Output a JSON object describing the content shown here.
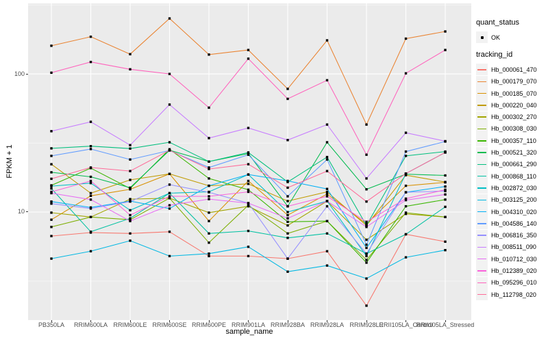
{
  "chart_data": {
    "type": "line",
    "title": "",
    "xlabel": "sample_name",
    "ylabel": "FPKM + 1",
    "yscale": "log10",
    "ylim": [
      1.65,
      324
    ],
    "yticks": [
      10,
      100
    ],
    "yminor": [
      3.162,
      31.62,
      316.2
    ],
    "grid": true,
    "legend_position": "right",
    "point_shape": "filled-square",
    "point_color": "#000000",
    "categories": [
      "PB350LA",
      "RRIM600LA",
      "RRIM600LE",
      "RRIM600SE",
      "RRIM600PE",
      "RRIM901LA",
      "RRIM928BA",
      "RRIM928LA",
      "RRIM928LE",
      "RRII105LA_Control",
      "RRII105LA_Stressed"
    ],
    "series": [
      {
        "name": "Hb_000061_470",
        "color": "#F8766D",
        "values": [
          6.7,
          7.1,
          7.0,
          7.2,
          4.8,
          4.8,
          4.6,
          5.2,
          2.1,
          6.9,
          6.1
        ]
      },
      {
        "name": "Hb_000179_070",
        "color": "#EA8331",
        "values": [
          160,
          186,
          139,
          252,
          138,
          149,
          78,
          175,
          43,
          180,
          203
        ]
      },
      {
        "name": "Hb_000185_070",
        "color": "#D89000",
        "values": [
          8.8,
          13.1,
          14.6,
          18.9,
          8.6,
          16.8,
          9.5,
          13.5,
          8.2,
          15.5,
          16.4
        ]
      },
      {
        "name": "Hb_000220_040",
        "color": "#C09B00",
        "values": [
          22.2,
          13.7,
          17.1,
          18.9,
          15.5,
          16.0,
          12.0,
          14.0,
          8.0,
          18.5,
          16.5
        ]
      },
      {
        "name": "Hb_000302_270",
        "color": "#A3A500",
        "values": [
          9.9,
          9.2,
          12.4,
          12.6,
          9.9,
          11.0,
          8.0,
          12.0,
          6.3,
          9.7,
          9.2
        ]
      },
      {
        "name": "Hb_000308_030",
        "color": "#7CAE00",
        "values": [
          7.8,
          9.2,
          8.8,
          12.6,
          6.0,
          11.2,
          7.0,
          8.6,
          4.5,
          9.9,
          9.2
        ]
      },
      {
        "name": "Hb_000357_110",
        "color": "#39B600",
        "values": [
          15.6,
          20.8,
          14.8,
          28.5,
          17.5,
          14.5,
          8.5,
          8.6,
          4.3,
          11.0,
          12.3
        ]
      },
      {
        "name": "Hb_000521_320",
        "color": "#00BB4E",
        "values": [
          19.4,
          18.0,
          15.0,
          28.0,
          23.2,
          26.5,
          11.0,
          32.0,
          14.6,
          18.8,
          18.4
        ]
      },
      {
        "name": "Hb_000661_290",
        "color": "#00BF7D",
        "values": [
          28.9,
          30.0,
          28.8,
          32.0,
          23.2,
          27.0,
          16.5,
          25.0,
          8.0,
          25.5,
          27.4
        ]
      },
      {
        "name": "Hb_000868_110",
        "color": "#00C1A2",
        "values": [
          14.8,
          7.2,
          9.0,
          13.7,
          7.0,
          7.3,
          6.5,
          7.0,
          5.0,
          6.9,
          10.9
        ]
      },
      {
        "name": "Hb_002872_030",
        "color": "#00BFC4",
        "values": [
          15.4,
          16.2,
          10.3,
          13.7,
          14.0,
          18.7,
          10.0,
          12.0,
          4.8,
          19.0,
          27.0
        ]
      },
      {
        "name": "Hb_003125_200",
        "color": "#00B8E3",
        "values": [
          4.6,
          5.2,
          6.2,
          4.8,
          5.0,
          5.6,
          3.7,
          4.1,
          3.3,
          4.7,
          5.3
        ]
      },
      {
        "name": "Hb_004310_020",
        "color": "#00B0F6",
        "values": [
          11.9,
          10.8,
          12.0,
          10.6,
          15.5,
          18.7,
          16.8,
          14.7,
          5.5,
          13.9,
          15.3
        ]
      },
      {
        "name": "Hb_004586_140",
        "color": "#619CFF",
        "values": [
          25.5,
          28.6,
          24.0,
          27.9,
          21.0,
          26.0,
          13.0,
          24.0,
          5.8,
          27.4,
          32.4
        ]
      },
      {
        "name": "Hb_006816_350",
        "color": "#9590FF",
        "values": [
          11.5,
          10.6,
          11.9,
          15.8,
          13.9,
          11.6,
          4.6,
          11.0,
          5.0,
          13.9,
          14.2
        ]
      },
      {
        "name": "Hb_008511_090",
        "color": "#C77CFF",
        "values": [
          38.5,
          45.0,
          30.5,
          60.0,
          34.3,
          40.6,
          33.2,
          43.0,
          17.5,
          37.5,
          32.6
        ]
      },
      {
        "name": "Hb_010712_030",
        "color": "#E76BF3",
        "values": [
          13.7,
          12.3,
          8.6,
          11.2,
          12.4,
          11.6,
          9.0,
          12.0,
          7.8,
          12.2,
          13.4
        ]
      },
      {
        "name": "Hb_012389_020",
        "color": "#FA62DB",
        "values": [
          14.0,
          16.8,
          9.5,
          13.0,
          13.0,
          14.0,
          11.0,
          13.0,
          8.5,
          12.5,
          14.5
        ]
      },
      {
        "name": "Hb_095296_010",
        "color": "#FF62BC",
        "values": [
          102,
          122,
          108,
          100,
          57,
          129,
          66,
          90,
          26,
          101,
          149
        ]
      },
      {
        "name": "Hb_112798_020",
        "color": "#FF6A98",
        "values": [
          17.4,
          21.0,
          19.8,
          28.0,
          20.5,
          22.2,
          15.0,
          19.8,
          11.9,
          19.0,
          27.0
        ]
      }
    ]
  },
  "legend": {
    "quant_status": {
      "title": "quant_status",
      "items": [
        {
          "label": "OK"
        }
      ]
    },
    "tracking_id": {
      "title": "tracking_id"
    }
  },
  "theme": {
    "panel_bg": "#EBEBEB",
    "grid_color": "#FFFFFF",
    "legend_key_bg": "#F2F2F2",
    "axis_text_color": "#4D4D4D",
    "title_color": "#000000"
  }
}
